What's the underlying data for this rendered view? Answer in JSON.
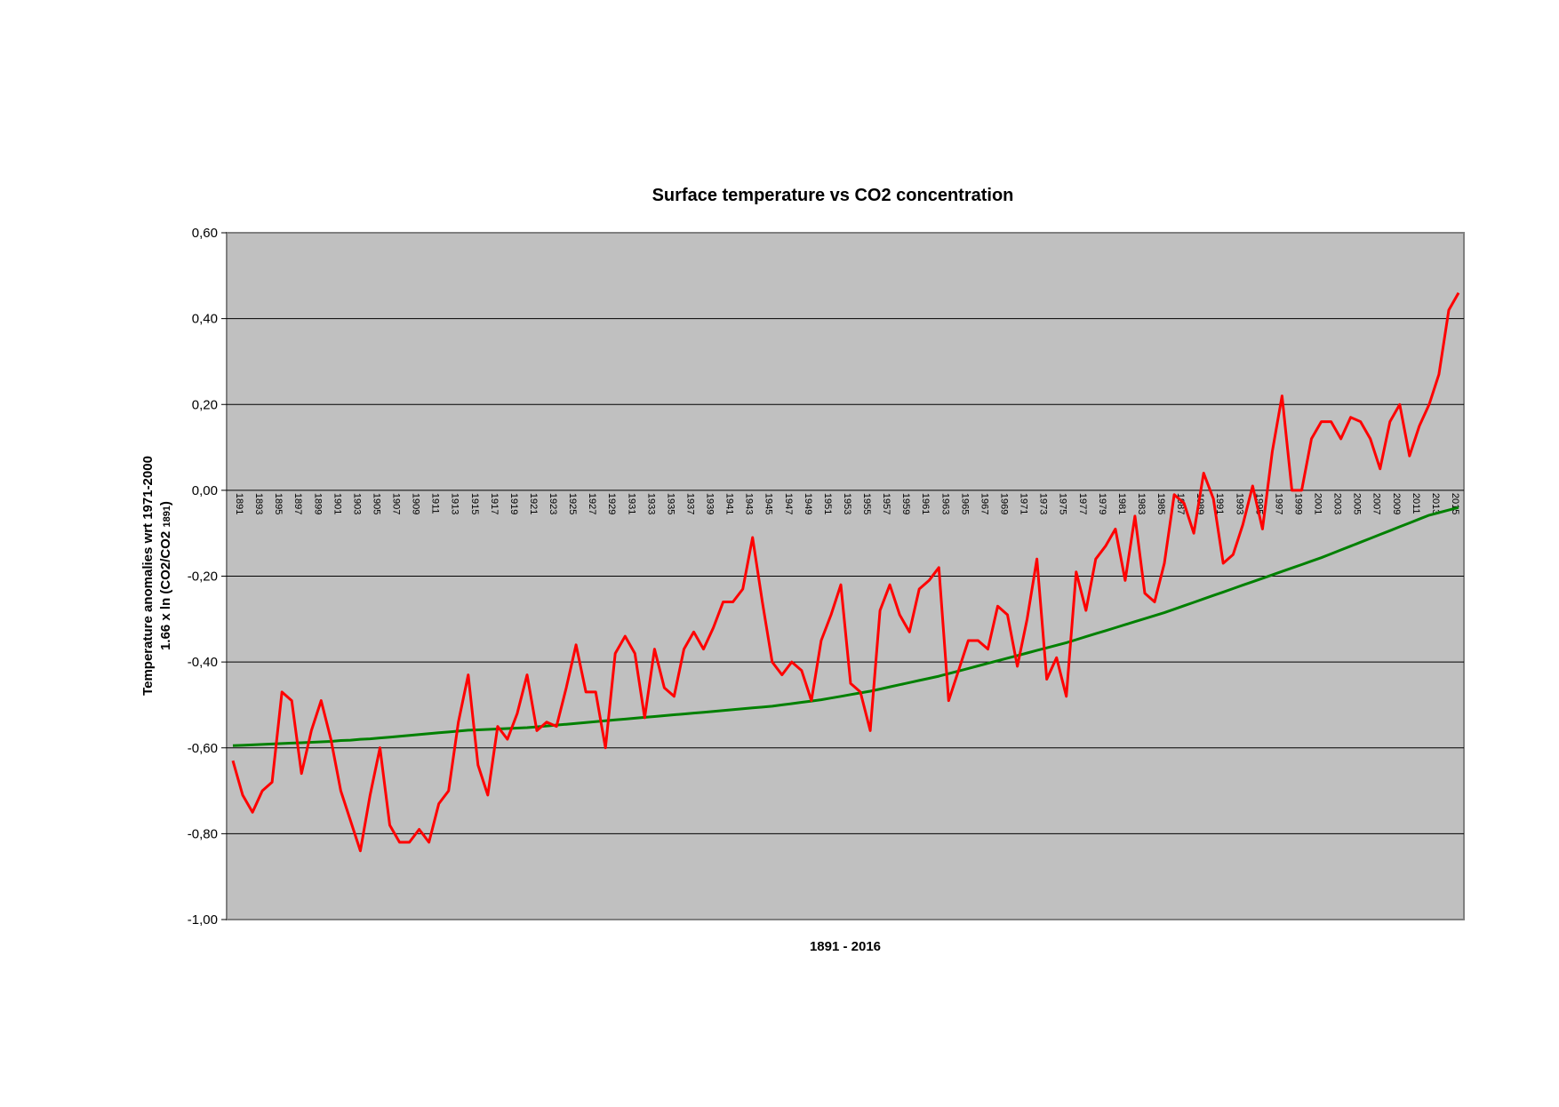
{
  "chart_data": {
    "type": "line",
    "title": "Surface temperature vs CO2 concentration",
    "xlabel": "1891 - 2016",
    "ylabel_line1": "Temperature anomalies wrt 1971-2000",
    "ylabel_line2_prefix": "1.66 x ln (CO2/CO2 ",
    "ylabel_line2_sub": "1891",
    "ylabel_line2_suffix": ")",
    "ylim": [
      -1.0,
      0.6
    ],
    "yticks": [
      "0,60",
      "0,40",
      "0,20",
      "0,00",
      "-0,20",
      "-0,40",
      "-0,60",
      "-0,80",
      "-1,00"
    ],
    "ytick_values": [
      0.6,
      0.4,
      0.2,
      0.0,
      -0.2,
      -0.4,
      -0.6,
      -0.8,
      -1.0
    ],
    "x_start": 1891,
    "x_end": 2016,
    "xtick_labels": [
      "1891",
      "1893",
      "1895",
      "1897",
      "1899",
      "1901",
      "1903",
      "1905",
      "1907",
      "1909",
      "1911",
      "1913",
      "1915",
      "1917",
      "1919",
      "1921",
      "1923",
      "1925",
      "1927",
      "1929",
      "1931",
      "1933",
      "1935",
      "1937",
      "1939",
      "1941",
      "1943",
      "1945",
      "1947",
      "1949",
      "1951",
      "1953",
      "1955",
      "1957",
      "1959",
      "1961",
      "1963",
      "1965",
      "1967",
      "1969",
      "1971",
      "1973",
      "1975",
      "1977",
      "1979",
      "1981",
      "1983",
      "1985",
      "1987",
      "1989",
      "1991",
      "1993",
      "1995",
      "1997",
      "1999",
      "2001",
      "2003",
      "2005",
      "2007",
      "2009",
      "2011",
      "2013",
      "2015"
    ],
    "grid": "horizontal",
    "plot_background": "#c0c0c0",
    "series": [
      {
        "color": "#ff0000",
        "values": [
          -0.63,
          -0.71,
          -0.75,
          -0.7,
          -0.68,
          -0.47,
          -0.49,
          -0.66,
          -0.56,
          -0.49,
          -0.58,
          -0.7,
          -0.77,
          -0.84,
          -0.71,
          -0.6,
          -0.78,
          -0.82,
          -0.82,
          -0.79,
          -0.82,
          -0.73,
          -0.7,
          -0.54,
          -0.43,
          -0.64,
          -0.71,
          -0.55,
          -0.58,
          -0.52,
          -0.43,
          -0.56,
          -0.54,
          -0.55,
          -0.46,
          -0.36,
          -0.47,
          -0.47,
          -0.6,
          -0.38,
          -0.34,
          -0.38,
          -0.53,
          -0.37,
          -0.46,
          -0.48,
          -0.37,
          -0.33,
          -0.37,
          -0.32,
          -0.26,
          -0.26,
          -0.23,
          -0.11,
          -0.26,
          -0.4,
          -0.43,
          -0.4,
          -0.42,
          -0.49,
          -0.35,
          -0.29,
          -0.22,
          -0.45,
          -0.47,
          -0.56,
          -0.28,
          -0.22,
          -0.29,
          -0.33,
          -0.23,
          -0.21,
          -0.18,
          -0.49,
          -0.42,
          -0.35,
          -0.35,
          -0.37,
          -0.27,
          -0.29,
          -0.41,
          -0.3,
          -0.16,
          -0.44,
          -0.39,
          -0.48,
          -0.19,
          -0.28,
          -0.16,
          -0.13,
          -0.09,
          -0.21,
          -0.06,
          -0.24,
          -0.26,
          -0.17,
          -0.01,
          -0.03,
          -0.1,
          0.04,
          -0.02,
          -0.17,
          -0.15,
          -0.08,
          0.01,
          -0.09,
          0.09,
          0.22,
          0.0,
          0.0,
          0.12,
          0.16,
          0.16,
          0.12,
          0.17,
          0.16,
          0.12,
          0.05,
          0.16,
          0.2,
          0.08,
          0.15,
          0.2,
          0.27,
          0.42,
          0.46
        ]
      },
      {
        "color": "#008000",
        "values": [
          -0.595,
          -0.594,
          -0.593,
          -0.592,
          -0.591,
          -0.59,
          -0.589,
          -0.588,
          -0.587,
          -0.586,
          -0.585,
          -0.583,
          -0.582,
          -0.58,
          -0.579,
          -0.577,
          -0.575,
          -0.573,
          -0.571,
          -0.569,
          -0.567,
          -0.565,
          -0.563,
          -0.561,
          -0.559,
          -0.558,
          -0.557,
          -0.556,
          -0.555,
          -0.554,
          -0.553,
          -0.551,
          -0.549,
          -0.547,
          -0.545,
          -0.543,
          -0.541,
          -0.539,
          -0.537,
          -0.535,
          -0.533,
          -0.531,
          -0.529,
          -0.527,
          -0.525,
          -0.523,
          -0.521,
          -0.519,
          -0.517,
          -0.515,
          -0.513,
          -0.511,
          -0.509,
          -0.507,
          -0.505,
          -0.503,
          -0.5,
          -0.497,
          -0.494,
          -0.491,
          -0.488,
          -0.484,
          -0.48,
          -0.476,
          -0.472,
          -0.468,
          -0.463,
          -0.458,
          -0.453,
          -0.448,
          -0.443,
          -0.438,
          -0.433,
          -0.427,
          -0.421,
          -0.415,
          -0.409,
          -0.403,
          -0.397,
          -0.391,
          -0.385,
          -0.379,
          -0.373,
          -0.367,
          -0.361,
          -0.355,
          -0.348,
          -0.341,
          -0.334,
          -0.327,
          -0.32,
          -0.313,
          -0.306,
          -0.299,
          -0.292,
          -0.285,
          -0.277,
          -0.269,
          -0.261,
          -0.253,
          -0.245,
          -0.237,
          -0.229,
          -0.221,
          -0.213,
          -0.205,
          -0.197,
          -0.189,
          -0.181,
          -0.173,
          -0.165,
          -0.157,
          -0.148,
          -0.139,
          -0.13,
          -0.121,
          -0.112,
          -0.103,
          -0.094,
          -0.085,
          -0.076,
          -0.067,
          -0.058,
          -0.052,
          -0.046,
          -0.04
        ]
      }
    ]
  }
}
